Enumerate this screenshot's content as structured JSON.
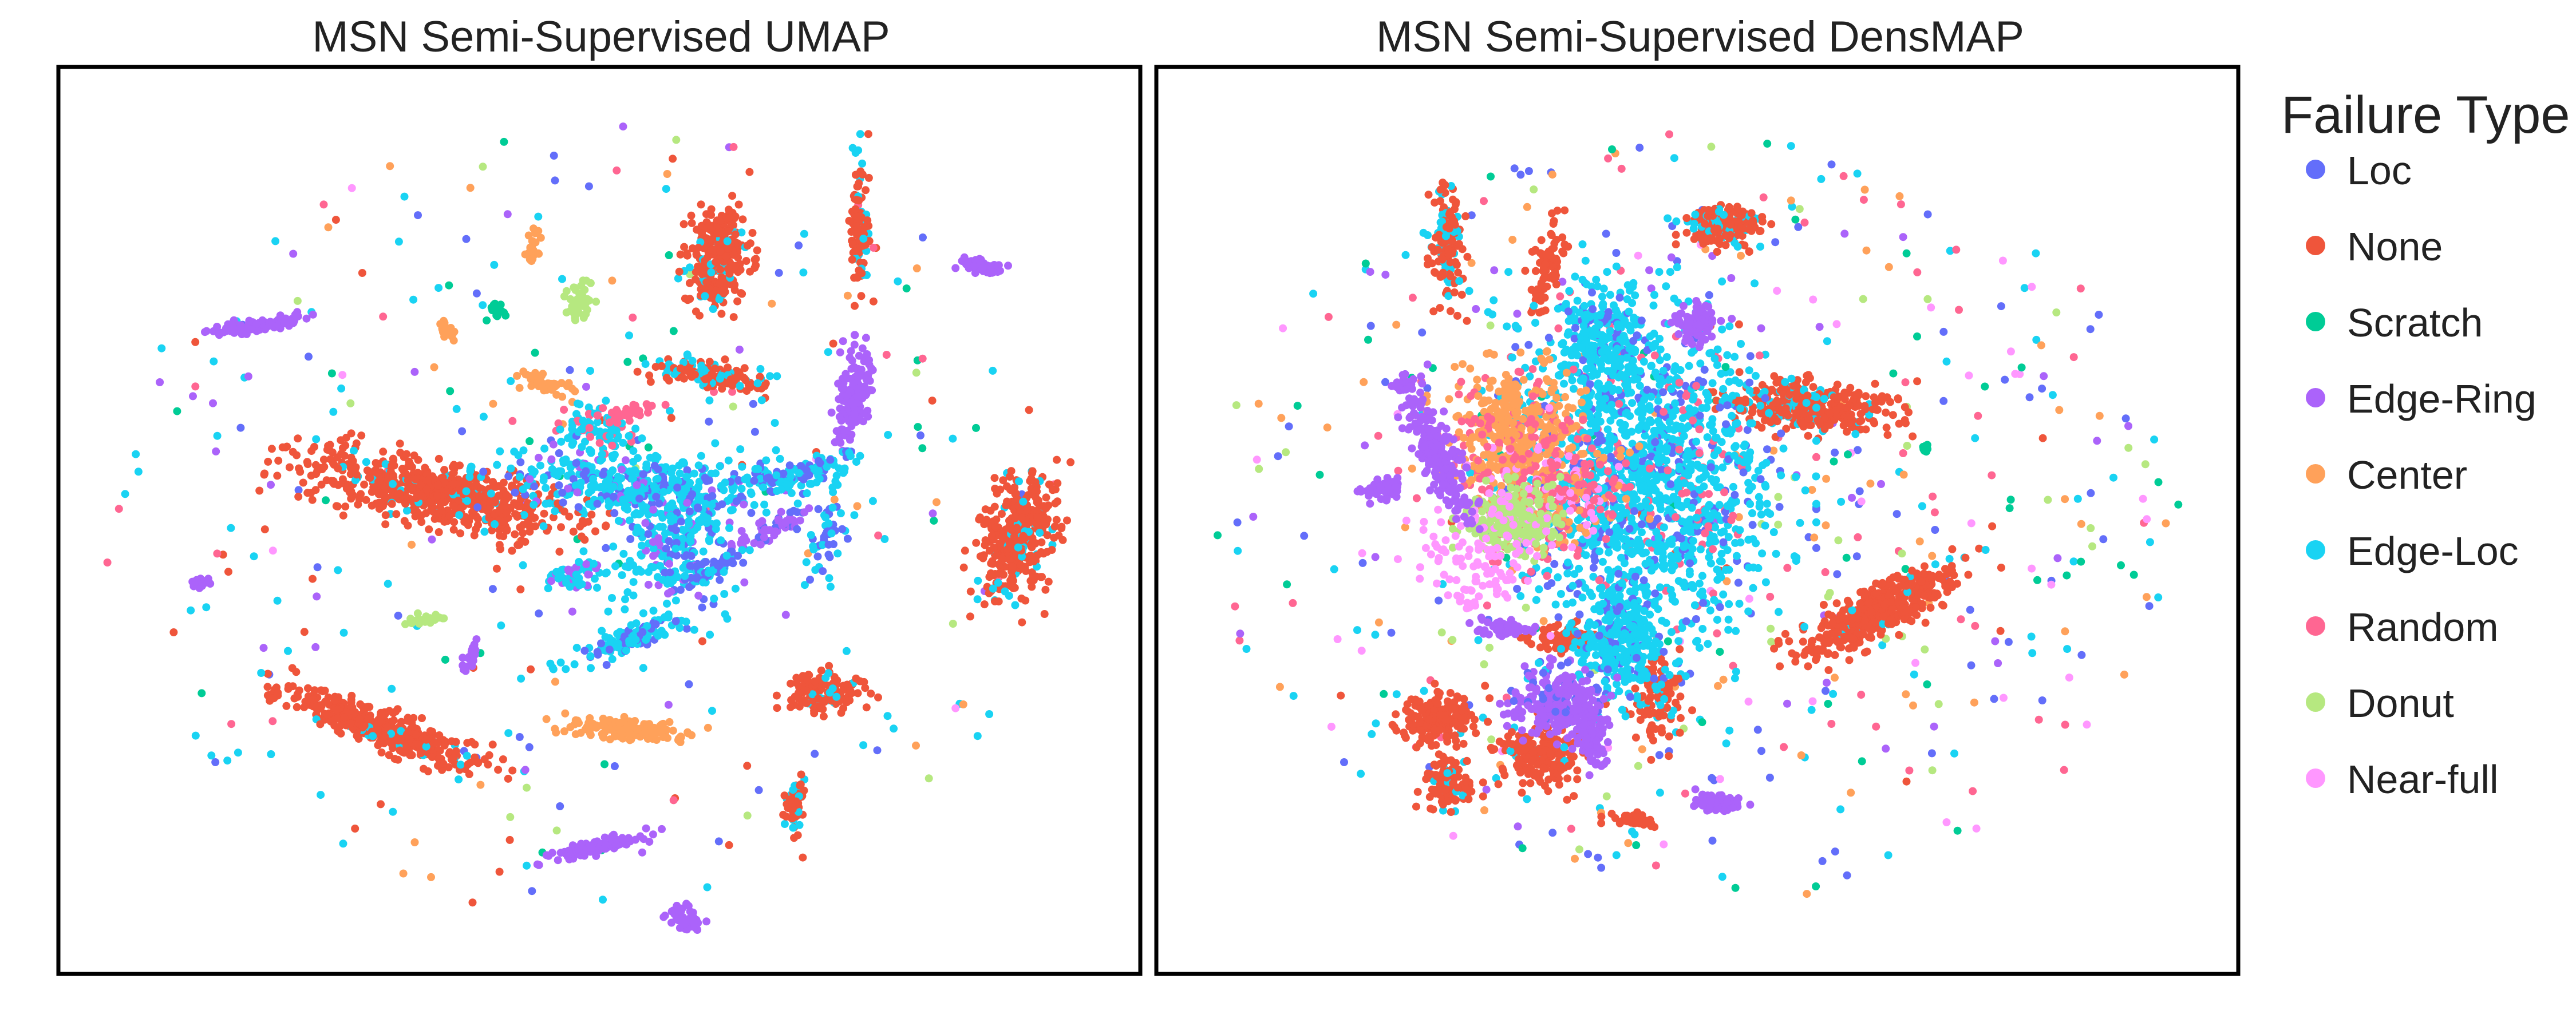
{
  "chart_data": [
    {
      "type": "scatter",
      "title": "MSN Semi-Supervised UMAP",
      "xlabel": "",
      "ylabel": "",
      "axes_ticks": false,
      "grid": false,
      "clusters": [
        {
          "category": "None",
          "cx": 0.35,
          "cy": 0.47,
          "rx": 0.1,
          "ry": 0.028,
          "angle": 14,
          "n": 700,
          "mix": {
            "Edge-Loc": 0.07
          }
        },
        {
          "category": "None",
          "cx": 0.3,
          "cy": 0.73,
          "rx": 0.08,
          "ry": 0.016,
          "angle": 24,
          "n": 420,
          "mix": {
            "Edge-Loc": 0.06
          }
        },
        {
          "category": "None",
          "cx": 0.61,
          "cy": 0.21,
          "rx": 0.022,
          "ry": 0.043,
          "angle": 5,
          "n": 300,
          "mix": {
            "Edge-Loc": 0.12
          }
        },
        {
          "category": "None",
          "cx": 0.885,
          "cy": 0.52,
          "rx": 0.027,
          "ry": 0.058,
          "angle": 12,
          "n": 360,
          "mix": {
            "Edge-Loc": 0.12
          }
        },
        {
          "category": "None",
          "cx": 0.74,
          "cy": 0.17,
          "rx": 0.006,
          "ry": 0.06,
          "angle": 0,
          "n": 110,
          "mix": {
            "Edge-Loc": 0.25
          }
        },
        {
          "category": "None",
          "cx": 0.71,
          "cy": 0.69,
          "rx": 0.03,
          "ry": 0.018,
          "angle": -10,
          "n": 150,
          "mix": {
            "Edge-Loc": 0.15
          }
        },
        {
          "category": "None",
          "cx": 0.605,
          "cy": 0.34,
          "rx": 0.045,
          "ry": 0.012,
          "angle": 10,
          "n": 150,
          "mix": {
            "Edge-Loc": 0.3
          }
        },
        {
          "category": "None",
          "cx": 0.68,
          "cy": 0.81,
          "rx": 0.008,
          "ry": 0.025,
          "angle": 0,
          "n": 60,
          "mix": {
            "Edge-Loc": 0.3
          }
        },
        {
          "category": "Edge-Ring",
          "cx": 0.185,
          "cy": 0.285,
          "rx": 0.035,
          "ry": 0.006,
          "angle": -10,
          "n": 110,
          "mix": {}
        },
        {
          "category": "Edge-Ring",
          "cx": 0.735,
          "cy": 0.36,
          "rx": 0.012,
          "ry": 0.04,
          "angle": 8,
          "n": 150,
          "mix": {}
        },
        {
          "category": "Edge-Ring",
          "cx": 0.852,
          "cy": 0.22,
          "rx": 0.016,
          "ry": 0.005,
          "angle": 12,
          "n": 60,
          "mix": {}
        },
        {
          "category": "Edge-Ring",
          "cx": 0.5,
          "cy": 0.86,
          "rx": 0.04,
          "ry": 0.006,
          "angle": -15,
          "n": 110,
          "mix": {}
        },
        {
          "category": "Edge-Ring",
          "cx": 0.58,
          "cy": 0.94,
          "rx": 0.012,
          "ry": 0.018,
          "angle": -40,
          "n": 45,
          "mix": {}
        },
        {
          "category": "Edge-Ring",
          "cx": 0.13,
          "cy": 0.57,
          "rx": 0.01,
          "ry": 0.004,
          "angle": -30,
          "n": 25,
          "mix": {}
        },
        {
          "category": "Edge-Ring",
          "cx": 0.38,
          "cy": 0.65,
          "rx": 0.004,
          "ry": 0.016,
          "angle": 20,
          "n": 25,
          "mix": {}
        },
        {
          "category": "Edge-Ring",
          "cx": 0.66,
          "cy": 0.51,
          "rx": 0.03,
          "ry": 0.008,
          "angle": -30,
          "n": 60,
          "mix": {
            "Loc": 0.3
          }
        },
        {
          "category": "Center",
          "cx": 0.52,
          "cy": 0.73,
          "rx": 0.05,
          "ry": 0.01,
          "angle": 5,
          "n": 150,
          "mix": {}
        },
        {
          "category": "Center",
          "cx": 0.45,
          "cy": 0.35,
          "rx": 0.02,
          "ry": 0.008,
          "angle": 15,
          "n": 45,
          "mix": {}
        },
        {
          "category": "Center",
          "cx": 0.36,
          "cy": 0.29,
          "rx": 0.01,
          "ry": 0.012,
          "angle": 40,
          "n": 20,
          "mix": {}
        },
        {
          "category": "Center",
          "cx": 0.44,
          "cy": 0.2,
          "rx": 0.005,
          "ry": 0.02,
          "angle": 10,
          "n": 25,
          "mix": {}
        },
        {
          "category": "Donut",
          "cx": 0.48,
          "cy": 0.26,
          "rx": 0.01,
          "ry": 0.016,
          "angle": 15,
          "n": 40,
          "mix": {}
        },
        {
          "category": "Donut",
          "cx": 0.34,
          "cy": 0.61,
          "rx": 0.018,
          "ry": 0.005,
          "angle": 0,
          "n": 30,
          "mix": {}
        },
        {
          "category": "Edge-Loc",
          "cx": 0.54,
          "cy": 0.46,
          "rx": 0.1,
          "ry": 0.03,
          "angle": 5,
          "n": 420,
          "mix": {
            "Loc": 0.2,
            "Edge-Ring": 0.08
          }
        },
        {
          "category": "Edge-Loc",
          "cx": 0.57,
          "cy": 0.53,
          "rx": 0.04,
          "ry": 0.06,
          "angle": 0,
          "n": 220,
          "mix": {
            "Loc": 0.25,
            "Edge-Ring": 0.12
          }
        },
        {
          "category": "Edge-Loc",
          "cx": 0.53,
          "cy": 0.63,
          "rx": 0.05,
          "ry": 0.012,
          "angle": -25,
          "n": 130,
          "mix": {
            "Loc": 0.3
          }
        },
        {
          "category": "Edge-Loc",
          "cx": 0.68,
          "cy": 0.45,
          "rx": 0.05,
          "ry": 0.014,
          "angle": -15,
          "n": 130,
          "mix": {
            "Loc": 0.25
          }
        },
        {
          "category": "Edge-Loc",
          "cx": 0.5,
          "cy": 0.4,
          "rx": 0.03,
          "ry": 0.02,
          "angle": 30,
          "n": 90,
          "mix": {
            "Random": 0.25
          }
        },
        {
          "category": "Edge-Loc",
          "cx": 0.48,
          "cy": 0.56,
          "rx": 0.03,
          "ry": 0.012,
          "angle": -10,
          "n": 60,
          "mix": {
            "Edge-Ring": 0.3
          }
        },
        {
          "category": "Loc",
          "cx": 0.71,
          "cy": 0.52,
          "rx": 0.015,
          "ry": 0.04,
          "angle": 10,
          "n": 45,
          "mix": {
            "Edge-Loc": 0.4
          }
        },
        {
          "category": "Loc",
          "cx": 0.61,
          "cy": 0.55,
          "rx": 0.03,
          "ry": 0.01,
          "angle": -35,
          "n": 60,
          "mix": {
            "Edge-Loc": 0.3
          }
        },
        {
          "category": "Random",
          "cx": 0.53,
          "cy": 0.38,
          "rx": 0.02,
          "ry": 0.006,
          "angle": -10,
          "n": 30,
          "mix": {}
        },
        {
          "category": "Scratch",
          "cx": 0.405,
          "cy": 0.27,
          "rx": 0.008,
          "ry": 0.006,
          "angle": 0,
          "n": 15,
          "mix": {}
        }
      ],
      "scattered": [
        {
          "category": "Edge-Loc",
          "n": 90
        },
        {
          "category": "Loc",
          "n": 45
        },
        {
          "category": "None",
          "n": 40
        },
        {
          "category": "Scratch",
          "n": 35
        },
        {
          "category": "Edge-Ring",
          "n": 30
        },
        {
          "category": "Center",
          "n": 25
        },
        {
          "category": "Random",
          "n": 25
        },
        {
          "category": "Donut",
          "n": 15
        },
        {
          "category": "Near-full",
          "n": 5
        }
      ]
    },
    {
      "type": "scatter",
      "title": "MSN Semi-Supervised DensMAP",
      "xlabel": "",
      "ylabel": "",
      "axes_ticks": false,
      "grid": false,
      "clusters": [
        {
          "category": "None",
          "cx": 0.67,
          "cy": 0.6,
          "rx": 0.075,
          "ry": 0.02,
          "angle": -30,
          "n": 420,
          "mix": {
            "Edge-Loc": 0.03
          }
        },
        {
          "category": "None",
          "cx": 0.605,
          "cy": 0.375,
          "rx": 0.06,
          "ry": 0.022,
          "angle": 4,
          "n": 380,
          "mix": {
            "Edge-Loc": 0.14
          }
        },
        {
          "category": "None",
          "cx": 0.525,
          "cy": 0.175,
          "rx": 0.028,
          "ry": 0.018,
          "angle": 0,
          "n": 200,
          "mix": {
            "Edge-Loc": 0.25
          }
        },
        {
          "category": "None",
          "cx": 0.27,
          "cy": 0.2,
          "rx": 0.012,
          "ry": 0.05,
          "angle": 0,
          "n": 150,
          "mix": {
            "Edge-Loc": 0.35
          }
        },
        {
          "category": "None",
          "cx": 0.26,
          "cy": 0.72,
          "rx": 0.03,
          "ry": 0.025,
          "angle": 0,
          "n": 180,
          "mix": {}
        },
        {
          "category": "None",
          "cx": 0.355,
          "cy": 0.76,
          "rx": 0.03,
          "ry": 0.03,
          "angle": 0,
          "n": 180,
          "mix": {
            "Edge-Loc": 0.08
          }
        },
        {
          "category": "None",
          "cx": 0.27,
          "cy": 0.79,
          "rx": 0.02,
          "ry": 0.028,
          "angle": 0,
          "n": 110,
          "mix": {
            "Edge-Loc": 0.1
          }
        },
        {
          "category": "None",
          "cx": 0.46,
          "cy": 0.7,
          "rx": 0.02,
          "ry": 0.04,
          "angle": 0,
          "n": 110,
          "mix": {
            "Edge-Loc": 0.1
          }
        },
        {
          "category": "None",
          "cx": 0.38,
          "cy": 0.63,
          "rx": 0.03,
          "ry": 0.012,
          "angle": 0,
          "n": 90,
          "mix": {}
        },
        {
          "category": "None",
          "cx": 0.36,
          "cy": 0.22,
          "rx": 0.012,
          "ry": 0.04,
          "angle": 10,
          "n": 80,
          "mix": {}
        },
        {
          "category": "None",
          "cx": 0.44,
          "cy": 0.83,
          "rx": 0.018,
          "ry": 0.006,
          "angle": 10,
          "n": 40,
          "mix": {}
        },
        {
          "category": "Edge-Loc",
          "cx": 0.45,
          "cy": 0.45,
          "rx": 0.1,
          "ry": 0.14,
          "angle": 0,
          "n": 1300,
          "mix": {
            "Loc": 0.18,
            "Random": 0.06
          }
        },
        {
          "category": "Edge-Loc",
          "cx": 0.43,
          "cy": 0.63,
          "rx": 0.035,
          "ry": 0.06,
          "angle": 0,
          "n": 350,
          "mix": {
            "Loc": 0.15
          }
        },
        {
          "category": "Edge-Loc",
          "cx": 0.41,
          "cy": 0.3,
          "rx": 0.035,
          "ry": 0.05,
          "angle": 0,
          "n": 250,
          "mix": {
            "Loc": 0.15
          }
        },
        {
          "category": "Center",
          "cx": 0.33,
          "cy": 0.4,
          "rx": 0.05,
          "ry": 0.06,
          "angle": 0,
          "n": 400,
          "mix": {
            "Random": 0.2
          }
        },
        {
          "category": "Random",
          "cx": 0.36,
          "cy": 0.47,
          "rx": 0.06,
          "ry": 0.06,
          "angle": 0,
          "n": 300,
          "mix": {
            "Center": 0.3,
            "Near-full": 0.12
          }
        },
        {
          "category": "Donut",
          "cx": 0.33,
          "cy": 0.5,
          "rx": 0.035,
          "ry": 0.03,
          "angle": 0,
          "n": 260,
          "mix": {
            "Near-full": 0.1
          }
        },
        {
          "category": "Near-full",
          "cx": 0.3,
          "cy": 0.55,
          "rx": 0.05,
          "ry": 0.05,
          "angle": 0,
          "n": 110,
          "mix": {}
        },
        {
          "category": "Edge-Ring",
          "cx": 0.26,
          "cy": 0.43,
          "rx": 0.015,
          "ry": 0.06,
          "angle": -20,
          "n": 220,
          "mix": {}
        },
        {
          "category": "Edge-Ring",
          "cx": 0.37,
          "cy": 0.7,
          "rx": 0.035,
          "ry": 0.03,
          "angle": 0,
          "n": 230,
          "mix": {
            "Loc": 0.15
          }
        },
        {
          "category": "Edge-Ring",
          "cx": 0.4,
          "cy": 0.73,
          "rx": 0.012,
          "ry": 0.035,
          "angle": -10,
          "n": 120,
          "mix": {}
        },
        {
          "category": "Edge-Ring",
          "cx": 0.5,
          "cy": 0.28,
          "rx": 0.015,
          "ry": 0.018,
          "angle": 0,
          "n": 90,
          "mix": {}
        },
        {
          "category": "Edge-Ring",
          "cx": 0.52,
          "cy": 0.81,
          "rx": 0.02,
          "ry": 0.01,
          "angle": 0,
          "n": 60,
          "mix": {}
        },
        {
          "category": "Edge-Ring",
          "cx": 0.21,
          "cy": 0.47,
          "rx": 0.015,
          "ry": 0.012,
          "angle": 0,
          "n": 50,
          "mix": {}
        },
        {
          "category": "Edge-Ring",
          "cx": 0.32,
          "cy": 0.62,
          "rx": 0.025,
          "ry": 0.008,
          "angle": 0,
          "n": 50,
          "mix": {}
        },
        {
          "category": "Edge-Ring",
          "cx": 0.23,
          "cy": 0.35,
          "rx": 0.012,
          "ry": 0.006,
          "angle": 0,
          "n": 30,
          "mix": {}
        },
        {
          "category": "Scratch",
          "cx": 0.71,
          "cy": 0.42,
          "rx": 0.003,
          "ry": 0.006,
          "angle": 0,
          "n": 12,
          "mix": {}
        }
      ],
      "scattered": [
        {
          "category": "Loc",
          "n": 120
        },
        {
          "category": "Edge-Loc",
          "n": 120
        },
        {
          "category": "Random",
          "n": 90
        },
        {
          "category": "Center",
          "n": 80
        },
        {
          "category": "Near-full",
          "n": 50
        },
        {
          "category": "Scratch",
          "n": 60
        },
        {
          "category": "Donut",
          "n": 50
        },
        {
          "category": "Edge-Ring",
          "n": 50
        },
        {
          "category": "None",
          "n": 25
        }
      ]
    }
  ],
  "legend": {
    "title": "Failure Type",
    "placement": "right",
    "entries": [
      {
        "label": "Loc",
        "color": "#636EFA"
      },
      {
        "label": "None",
        "color": "#EF553B"
      },
      {
        "label": "Scratch",
        "color": "#00CC96"
      },
      {
        "label": "Edge-Ring",
        "color": "#AB63FA"
      },
      {
        "label": "Center",
        "color": "#FFA15A"
      },
      {
        "label": "Edge-Loc",
        "color": "#19D3F3"
      },
      {
        "label": "Random",
        "color": "#FF6692"
      },
      {
        "label": "Donut",
        "color": "#B6E880"
      },
      {
        "label": "Near-full",
        "color": "#FF97FF"
      }
    ]
  }
}
